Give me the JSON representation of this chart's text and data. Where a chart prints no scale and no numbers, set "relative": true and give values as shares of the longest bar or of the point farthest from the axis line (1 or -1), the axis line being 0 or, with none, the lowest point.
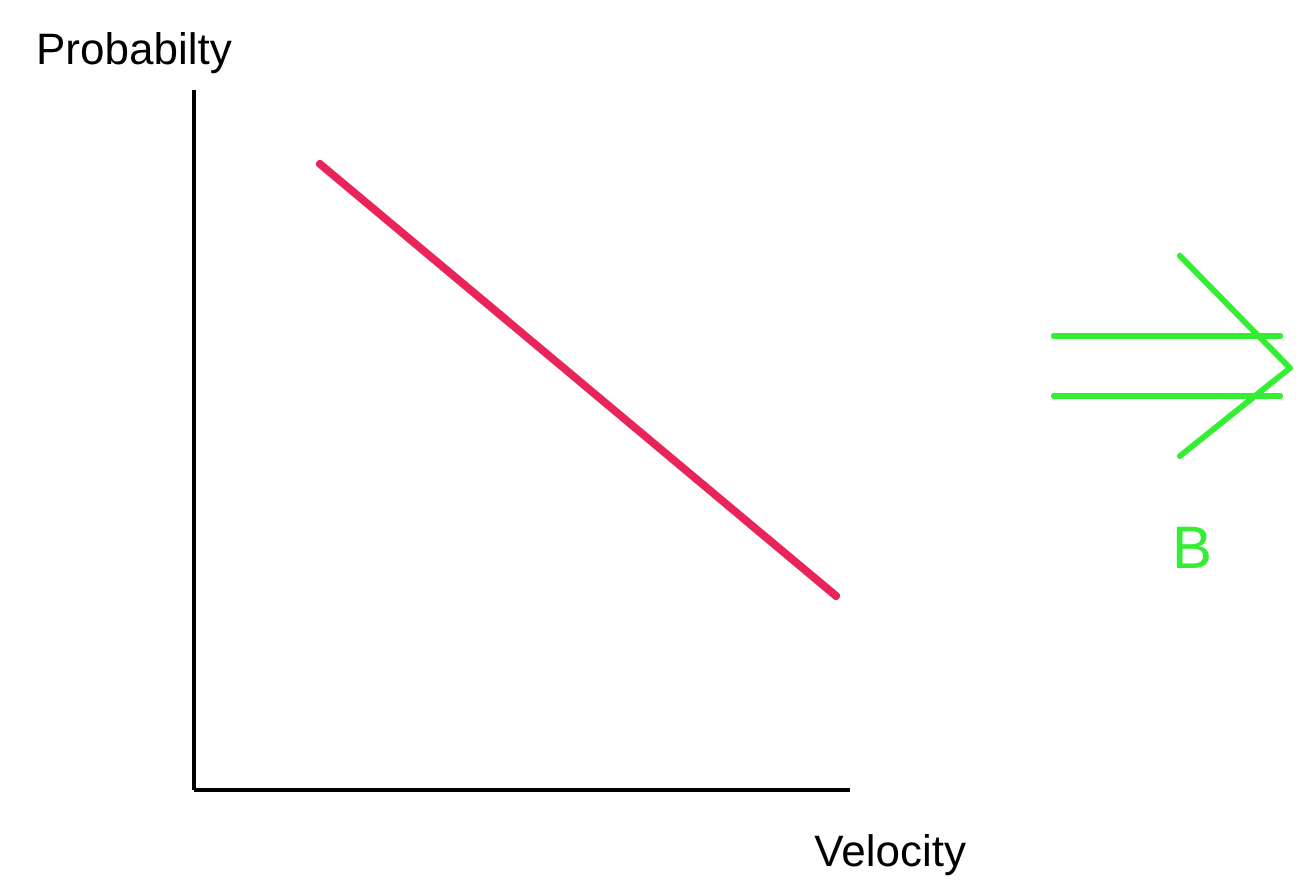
{
  "chart_data": {
    "type": "line",
    "relative": true,
    "xlabel": "Velocity",
    "ylabel": "Probabilty",
    "categories": [
      null,
      null
    ],
    "series": [
      {
        "color": "#e8245a",
        "values": [
          1,
          0.31
        ]
      }
    ],
    "annotations": [
      "B"
    ]
  }
}
